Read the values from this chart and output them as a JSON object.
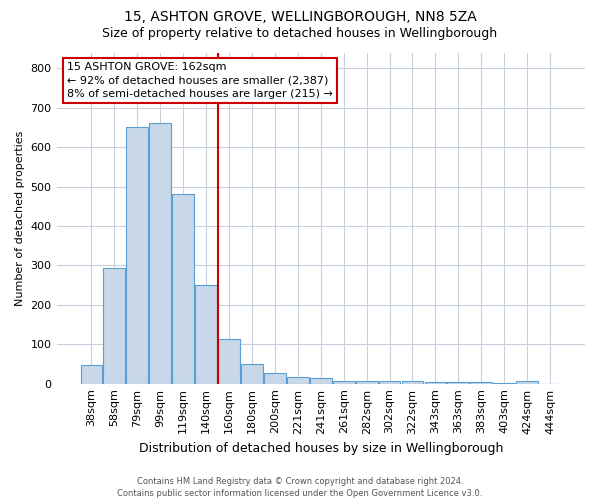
{
  "title1": "15, ASHTON GROVE, WELLINGBOROUGH, NN8 5ZA",
  "title2": "Size of property relative to detached houses in Wellingborough",
  "xlabel": "Distribution of detached houses by size in Wellingborough",
  "ylabel": "Number of detached properties",
  "footnote1": "Contains HM Land Registry data © Crown copyright and database right 2024.",
  "footnote2": "Contains public sector information licensed under the Open Government Licence v3.0.",
  "bar_labels": [
    "38sqm",
    "58sqm",
    "79sqm",
    "99sqm",
    "119sqm",
    "140sqm",
    "160sqm",
    "180sqm",
    "200sqm",
    "221sqm",
    "241sqm",
    "261sqm",
    "282sqm",
    "302sqm",
    "322sqm",
    "343sqm",
    "363sqm",
    "383sqm",
    "403sqm",
    "424sqm",
    "444sqm"
  ],
  "bar_values": [
    47,
    293,
    650,
    660,
    480,
    250,
    113,
    50,
    28,
    17,
    14,
    8,
    8,
    6,
    6,
    5,
    5,
    5,
    1,
    8,
    0
  ],
  "bar_color": "#c8d8e8",
  "bar_edge_color": "#5a9fd4",
  "vline_color": "#cc0000",
  "annotation_line1": "15 ASHTON GROVE: 162sqm",
  "annotation_line2": "← 92% of detached houses are smaller (2,387)",
  "annotation_line3": "8% of semi-detached houses are larger (215) →",
  "annotation_box_color": "#cc0000",
  "ylim": [
    0,
    840
  ],
  "yticks": [
    0,
    100,
    200,
    300,
    400,
    500,
    600,
    700,
    800
  ],
  "bg_color": "#ffffff",
  "grid_color": "#c8d0de",
  "title1_fontsize": 10,
  "title2_fontsize": 9,
  "xlabel_fontsize": 9,
  "ylabel_fontsize": 8,
  "tick_fontsize": 8,
  "annot_fontsize": 8,
  "footnote_fontsize": 6
}
